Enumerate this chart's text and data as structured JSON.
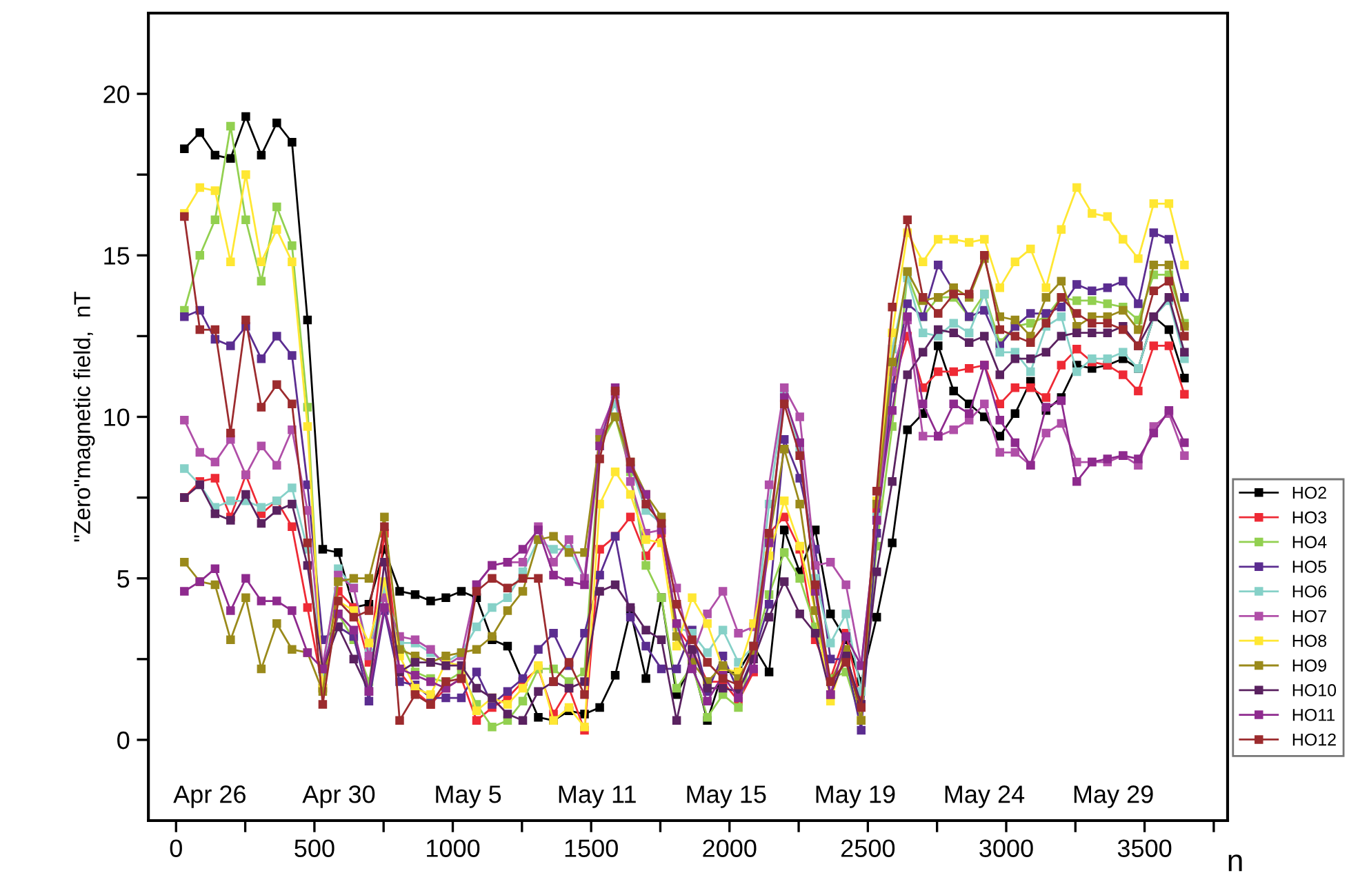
{
  "chart_data": {
    "type": "line",
    "xlabel": "n",
    "ylabel": "\"Zero\"magnetic field,  nT",
    "xlim": [
      -100,
      3800
    ],
    "ylim": [
      -2.5,
      22.5
    ],
    "xticks": [
      0,
      {
        "value": 250,
        "label": null
      },
      500,
      {
        "value": 750,
        "label": null
      },
      1000,
      {
        "value": 1250,
        "label": null
      },
      1500,
      {
        "value": 1750,
        "label": null
      },
      2000,
      {
        "value": 2250,
        "label": null
      },
      2500,
      {
        "value": 2750,
        "label": null
      },
      3000,
      {
        "value": 3250,
        "label": null
      },
      3500,
      {
        "value": 3750,
        "label": null
      }
    ],
    "yticks": [
      0,
      {
        "value": 2.5,
        "label": null
      },
      5,
      {
        "value": 7.5,
        "label": null
      },
      10,
      {
        "value": 12.5,
        "label": null
      },
      15,
      {
        "value": 17.5,
        "label": null
      },
      20
    ],
    "grid": false,
    "legend": "right",
    "marker": "square",
    "line_style": "solid",
    "annotations": [
      "Apr 26",
      "Apr 30",
      "May 5",
      "May 11",
      "May 15",
      "May 19",
      "May 24",
      "May 29"
    ],
    "x": [
      30,
      86,
      141,
      197,
      252,
      308,
      364,
      419,
      475,
      530,
      586,
      642,
      697,
      753,
      808,
      864,
      920,
      975,
      1031,
      1086,
      1142,
      1198,
      1253,
      1309,
      1364,
      1420,
      1476,
      1531,
      1587,
      1642,
      1698,
      1754,
      1809,
      1865,
      1920,
      1976,
      2032,
      2087,
      2143,
      2198,
      2254,
      2310,
      2365,
      2421,
      2476,
      2532,
      2588,
      2643,
      2699,
      2754,
      2810,
      2866,
      2921,
      2977,
      3032,
      3088,
      3144,
      3199,
      3255,
      3310,
      3366,
      3422,
      3477,
      3533,
      3588,
      3644
    ],
    "series": [
      {
        "name": "HO2",
        "color": "#000000",
        "values": [
          18.3,
          18.8,
          18.1,
          18.0,
          19.3,
          18.1,
          19.1,
          18.5,
          13.0,
          5.9,
          5.8,
          4.1,
          4.2,
          5.9,
          4.6,
          4.5,
          4.3,
          4.4,
          4.6,
          4.4,
          3.1,
          2.9,
          1.8,
          0.7,
          0.6,
          0.9,
          0.8,
          1.0,
          2.0,
          4.0,
          1.9,
          4.4,
          1.4,
          2.4,
          0.6,
          2.1,
          2.1,
          2.9,
          2.1,
          6.5,
          5.2,
          6.5,
          3.9,
          3.1,
          1.8,
          3.8,
          6.1,
          9.6,
          10.1,
          12.2,
          10.8,
          10.4,
          10.0,
          9.4,
          10.1,
          11.1,
          10.2,
          10.6,
          11.6,
          11.5,
          11.6,
          11.8,
          11.5,
          13.1,
          12.7,
          11.2
        ]
      },
      {
        "name": "HO3",
        "color": "#ee2a35",
        "values": [
          7.5,
          8.0,
          8.1,
          6.9,
          8.2,
          7.0,
          7.4,
          6.6,
          4.1,
          1.6,
          4.6,
          4.1,
          2.4,
          6.4,
          2.1,
          1.5,
          1.1,
          1.6,
          1.9,
          0.6,
          1.0,
          1.3,
          1.8,
          2.2,
          0.8,
          1.6,
          0.3,
          5.9,
          6.3,
          6.9,
          5.7,
          6.4,
          3.5,
          2.8,
          1.8,
          1.8,
          1.2,
          2.1,
          6.4,
          6.9,
          5.9,
          3.1,
          1.9,
          3.3,
          1.1,
          7.1,
          10.9,
          12.5,
          10.9,
          11.4,
          11.4,
          11.5,
          11.6,
          10.4,
          10.9,
          10.9,
          10.6,
          11.6,
          12.1,
          11.7,
          11.6,
          11.3,
          10.8,
          12.2,
          12.2,
          10.7
        ]
      },
      {
        "name": "HO4",
        "color": "#92d050",
        "values": [
          13.3,
          15.0,
          16.1,
          19.0,
          16.1,
          14.2,
          16.5,
          15.3,
          10.3,
          1.6,
          3.9,
          3.1,
          1.8,
          4.7,
          3.1,
          2.1,
          1.9,
          1.8,
          2.1,
          1.1,
          0.4,
          0.6,
          1.2,
          2.2,
          2.2,
          1.8,
          2.1,
          9.1,
          10.0,
          8.3,
          5.4,
          4.4,
          1.6,
          2.3,
          0.7,
          1.4,
          1.0,
          2.8,
          4.5,
          5.8,
          5.0,
          3.5,
          1.9,
          2.1,
          0.6,
          6.0,
          9.7,
          14.4,
          13.1,
          13.7,
          13.7,
          13.1,
          13.8,
          12.3,
          12.8,
          12.9,
          13.1,
          13.7,
          13.6,
          13.6,
          13.5,
          13.4,
          13.0,
          14.4,
          14.4,
          12.9
        ]
      },
      {
        "name": "HO5",
        "color": "#5b2d90",
        "values": [
          13.1,
          13.3,
          12.4,
          12.2,
          12.8,
          11.8,
          12.5,
          11.9,
          7.9,
          3.1,
          3.5,
          3.2,
          1.2,
          4.0,
          1.8,
          1.7,
          1.3,
          1.3,
          1.3,
          2.1,
          1.1,
          1.5,
          1.9,
          2.8,
          3.3,
          2.3,
          3.3,
          5.1,
          6.3,
          3.8,
          2.9,
          2.2,
          2.2,
          3.4,
          1.5,
          2.6,
          1.5,
          2.6,
          4.2,
          9.3,
          8.1,
          5.9,
          2.5,
          2.5,
          0.3,
          6.4,
          10.9,
          13.5,
          13.1,
          14.7,
          13.9,
          13.1,
          13.3,
          12.2,
          12.8,
          13.2,
          13.2,
          13.4,
          14.1,
          13.9,
          14.0,
          14.2,
          13.5,
          15.7,
          15.5,
          13.7
        ]
      },
      {
        "name": "HO6",
        "color": "#86d1c8",
        "values": [
          8.4,
          7.9,
          7.2,
          7.4,
          7.4,
          7.2,
          7.4,
          7.8,
          5.9,
          2.1,
          5.3,
          4.7,
          2.7,
          4.7,
          3.0,
          3.0,
          2.7,
          2.4,
          2.7,
          3.5,
          4.1,
          4.4,
          5.2,
          6.2,
          5.9,
          5.9,
          5.0,
          9.4,
          10.4,
          8.5,
          7.1,
          6.7,
          3.5,
          3.3,
          2.7,
          3.4,
          2.4,
          2.9,
          7.3,
          10.7,
          9.0,
          5.0,
          3.0,
          3.9,
          1.5,
          6.9,
          12.1,
          14.3,
          12.6,
          12.5,
          12.9,
          12.6,
          13.8,
          12.0,
          12.0,
          11.4,
          12.8,
          13.1,
          11.4,
          11.8,
          11.8,
          12.0,
          11.5,
          13.1,
          13.6,
          11.8
        ]
      },
      {
        "name": "HO7",
        "color": "#b04fa8",
        "values": [
          9.9,
          8.9,
          8.6,
          9.3,
          8.2,
          9.1,
          8.5,
          9.6,
          7.1,
          2.3,
          5.1,
          4.7,
          2.6,
          4.4,
          3.2,
          3.1,
          2.8,
          2.3,
          2.6,
          4.8,
          5.4,
          5.5,
          5.5,
          6.6,
          5.5,
          6.2,
          5.0,
          9.5,
          10.7,
          8.0,
          6.4,
          6.5,
          4.7,
          2.6,
          3.9,
          4.6,
          3.3,
          3.5,
          7.9,
          10.9,
          10.0,
          5.4,
          5.5,
          4.8,
          2.3,
          6.8,
          11.4,
          13.0,
          9.4,
          9.4,
          9.6,
          9.9,
          10.4,
          8.9,
          8.9,
          8.5,
          9.5,
          9.8,
          8.6,
          8.6,
          8.6,
          8.8,
          8.5,
          9.7,
          10.1,
          8.8
        ]
      },
      {
        "name": "HO8",
        "color": "#ffe733",
        "values": [
          16.3,
          17.1,
          17.0,
          14.8,
          17.5,
          14.8,
          15.8,
          14.8,
          9.7,
          1.6,
          4.3,
          4.0,
          3.0,
          4.9,
          2.6,
          1.6,
          1.4,
          2.4,
          2.3,
          0.9,
          1.3,
          1.1,
          1.6,
          2.3,
          0.6,
          1.0,
          0.4,
          7.3,
          8.3,
          7.6,
          6.2,
          6.1,
          2.9,
          4.4,
          3.6,
          2.2,
          2.1,
          3.6,
          5.7,
          7.4,
          6.0,
          4.0,
          1.2,
          2.8,
          0.6,
          7.4,
          12.6,
          15.7,
          14.8,
          15.5,
          15.5,
          15.4,
          15.5,
          14.0,
          14.8,
          15.2,
          14.0,
          15.8,
          17.1,
          16.3,
          16.2,
          15.5,
          14.9,
          16.6,
          16.6,
          14.7
        ]
      },
      {
        "name": "HO9",
        "color": "#9a8a1b",
        "values": [
          5.5,
          4.9,
          4.8,
          3.1,
          4.4,
          2.2,
          3.6,
          2.8,
          2.7,
          1.5,
          4.9,
          5.0,
          5.0,
          6.9,
          2.8,
          2.6,
          2.4,
          2.6,
          2.7,
          2.8,
          3.2,
          4.0,
          4.6,
          6.2,
          6.3,
          5.8,
          5.8,
          9.3,
          10.0,
          8.6,
          7.6,
          6.9,
          3.2,
          2.4,
          1.8,
          2.3,
          1.9,
          2.7,
          6.2,
          9.0,
          7.3,
          4.0,
          1.8,
          2.8,
          0.6,
          7.3,
          11.7,
          14.5,
          13.6,
          13.7,
          14.0,
          13.7,
          14.9,
          13.1,
          13.0,
          12.5,
          13.7,
          14.2,
          12.8,
          13.1,
          13.1,
          13.3,
          12.7,
          14.7,
          14.7,
          12.8
        ]
      },
      {
        "name": "HO10",
        "color": "#5a2260",
        "values": [
          7.5,
          7.9,
          7.0,
          6.8,
          7.6,
          6.7,
          7.1,
          7.3,
          5.4,
          2.2,
          3.5,
          2.5,
          1.5,
          5.5,
          2.1,
          2.4,
          2.4,
          2.3,
          2.3,
          1.6,
          1.3,
          0.8,
          0.6,
          1.5,
          1.8,
          1.6,
          1.8,
          4.6,
          4.8,
          4.1,
          3.4,
          3.1,
          0.6,
          2.8,
          1.6,
          1.6,
          1.5,
          2.5,
          3.8,
          4.9,
          3.9,
          3.3,
          1.4,
          2.6,
          1.1,
          5.2,
          8.0,
          11.3,
          12.0,
          12.7,
          12.6,
          12.3,
          12.5,
          11.3,
          11.8,
          11.8,
          12.0,
          12.5,
          12.6,
          12.6,
          12.6,
          12.8,
          12.2,
          13.1,
          13.7,
          12.0
        ]
      },
      {
        "name": "HO11",
        "color": "#8e2a8e",
        "values": [
          4.6,
          4.9,
          5.3,
          4.0,
          5.0,
          4.3,
          4.3,
          4.0,
          2.7,
          2.2,
          3.9,
          3.4,
          1.5,
          4.1,
          2.2,
          2.0,
          1.8,
          1.6,
          1.9,
          4.8,
          5.4,
          5.5,
          5.9,
          6.5,
          5.1,
          4.9,
          4.8,
          9.1,
          10.9,
          8.4,
          7.6,
          6.5,
          3.6,
          2.2,
          1.2,
          2.0,
          1.3,
          2.2,
          6.1,
          10.6,
          9.2,
          4.6,
          1.4,
          3.2,
          2.3,
          6.8,
          10.2,
          13.1,
          10.4,
          9.4,
          10.4,
          10.1,
          11.6,
          9.9,
          9.2,
          8.5,
          10.3,
          10.5,
          8.0,
          8.6,
          8.7,
          8.8,
          8.7,
          9.5,
          10.2,
          9.2
        ]
      },
      {
        "name": "HO12",
        "color": "#9c2b2e",
        "values": [
          16.2,
          12.7,
          12.7,
          9.5,
          13.0,
          10.3,
          11.0,
          10.4,
          6.1,
          1.1,
          4.3,
          3.8,
          4.0,
          6.6,
          0.6,
          1.4,
          1.1,
          1.8,
          1.9,
          4.6,
          5.0,
          4.7,
          5.0,
          5.0,
          1.8,
          2.4,
          1.4,
          8.7,
          10.8,
          8.6,
          7.3,
          6.7,
          4.2,
          3.1,
          2.4,
          1.9,
          1.7,
          2.9,
          6.4,
          10.4,
          8.8,
          4.8,
          1.8,
          2.4,
          1.0,
          7.7,
          13.4,
          16.1,
          13.7,
          13.2,
          13.8,
          13.8,
          15.0,
          12.7,
          12.5,
          12.3,
          12.9,
          13.7,
          13.2,
          12.9,
          12.9,
          12.7,
          12.2,
          13.9,
          14.2,
          12.5
        ]
      }
    ]
  }
}
